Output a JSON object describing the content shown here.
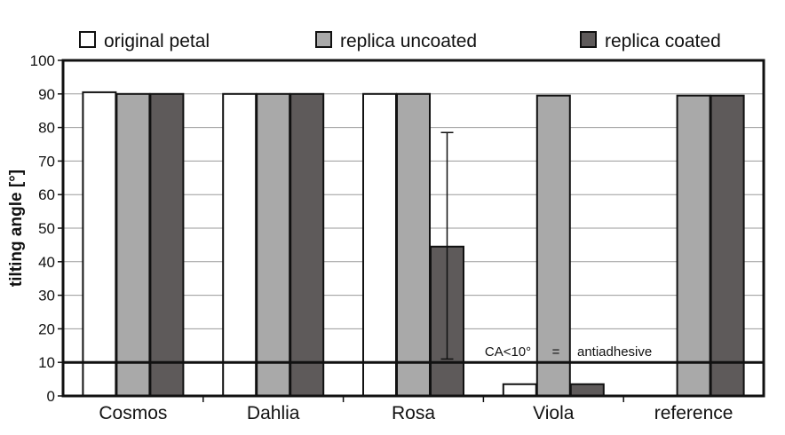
{
  "chart_data": {
    "type": "bar",
    "title": "",
    "xlabel": "",
    "ylabel": "tilting angle [°]",
    "ylim": [
      0,
      100
    ],
    "yticks": [
      0,
      10,
      20,
      30,
      40,
      50,
      60,
      70,
      80,
      90,
      100
    ],
    "grid": true,
    "legend_position": "top",
    "categories": [
      "Cosmos",
      "Dahlia",
      "Rosa",
      "Viola",
      "reference"
    ],
    "series": [
      {
        "name": "original petal",
        "color": "#ffffff",
        "values": [
          90.5,
          90,
          90,
          3.5,
          0
        ]
      },
      {
        "name": "replica uncoated",
        "color": "#a9a9a9",
        "values": [
          90,
          90,
          90,
          89.5,
          89.5
        ]
      },
      {
        "name": "replica coated",
        "color": "#5e5a5a",
        "values": [
          90,
          90,
          44.5,
          3.5,
          89.5
        ]
      }
    ],
    "error_bars": [
      {
        "category": "Rosa",
        "series": "replica coated",
        "low": 11,
        "high": 78.5
      }
    ],
    "reference_line": {
      "y": 10,
      "label_left": "CA<10°",
      "label_mid": "=",
      "label_right": "antiadhesive"
    }
  }
}
